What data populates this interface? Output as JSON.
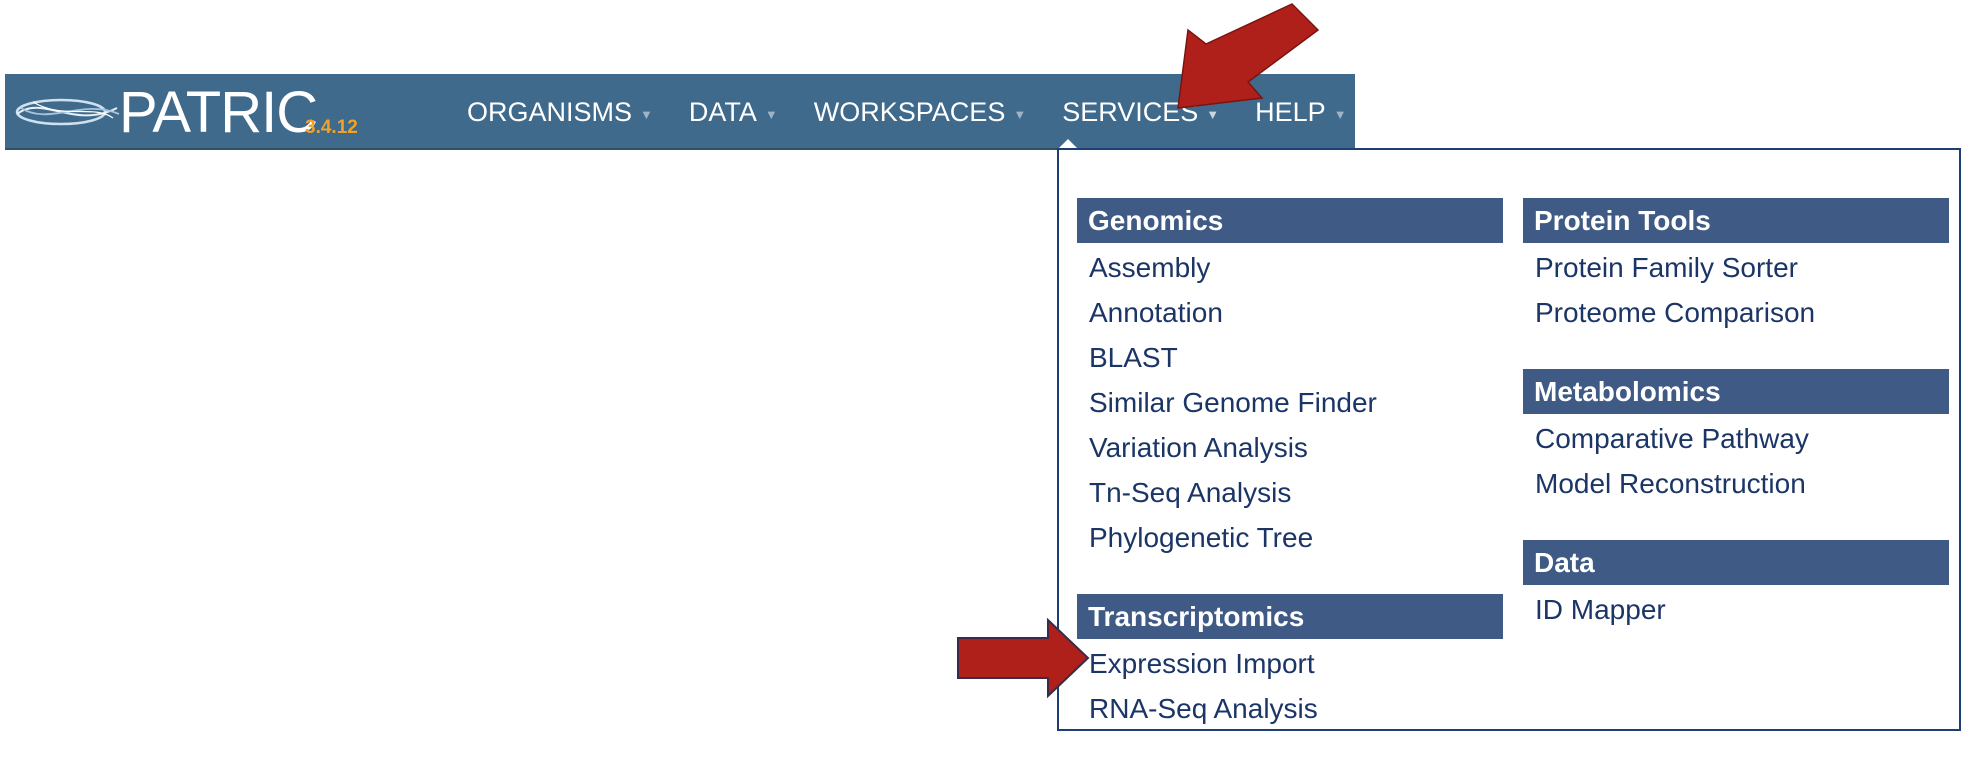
{
  "app": {
    "name": "PATRIC",
    "version": "3.4.12"
  },
  "nav": {
    "items": [
      {
        "label": "ORGANISMS"
      },
      {
        "label": "DATA"
      },
      {
        "label": "WORKSPACES"
      },
      {
        "label": "SERVICES"
      },
      {
        "label": "HELP"
      }
    ]
  },
  "services_menu": {
    "left_column": [
      {
        "header": "Genomics",
        "items": [
          "Assembly",
          "Annotation",
          "BLAST",
          "Similar Genome Finder",
          "Variation Analysis",
          "Tn-Seq Analysis",
          "Phylogenetic Tree"
        ]
      },
      {
        "header": "Transcriptomics",
        "items": [
          "Expression Import",
          "RNA-Seq Analysis"
        ]
      }
    ],
    "right_column": [
      {
        "header": "Protein Tools",
        "items": [
          "Protein Family Sorter",
          "Proteome Comparison"
        ]
      },
      {
        "header": "Metabolomics",
        "items": [
          "Comparative Pathway",
          "Model Reconstruction"
        ]
      },
      {
        "header": "Data",
        "items": [
          "ID Mapper"
        ]
      }
    ]
  },
  "colors": {
    "navbar": "#3f6a8c",
    "section_header": "#3e5a85",
    "menu_link": "#1b3566",
    "version": "#f0a22a",
    "annotation_arrow": "#b0201b"
  }
}
